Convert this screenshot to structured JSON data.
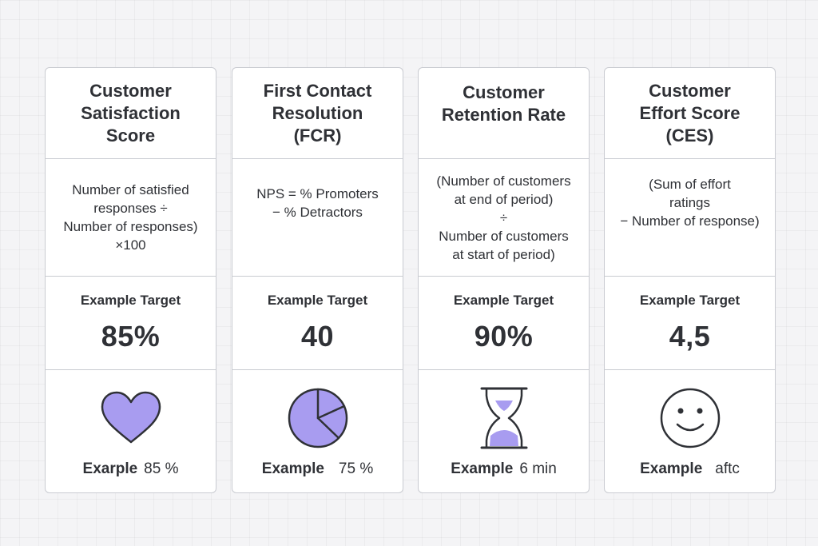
{
  "theme": {
    "accent": "#a89cf0",
    "icon_stroke": "#2f3136",
    "card_border": "#c9cbd1",
    "background": "#f4f4f6"
  },
  "cards": [
    {
      "title": "Customer\nSatisfaction\nScore",
      "formula": "Number of satisfied\nresponses ÷\nNumber of responses)\n×100",
      "target_label": "Example Target",
      "target_value": "85%",
      "icon": "heart-icon",
      "example_label": "Exarple",
      "example_value": "85 %"
    },
    {
      "title": "First Contact\nResolution\n(FCR)",
      "formula": "NPS = % Promoters\n− % Detractors",
      "target_label": "Example Target",
      "target_value": "40",
      "icon": "pie-chart-icon",
      "example_label": "Example",
      "example_value": "75 %"
    },
    {
      "title": "Customer\nRetention Rate",
      "formula": "(Number of customers\nat end of period)\n÷\nNumber of customers\nat start of period)",
      "target_label": "Example Target",
      "target_value": "90%",
      "icon": "hourglass-icon",
      "example_label": "Example",
      "example_value": "6 min"
    },
    {
      "title": "Customer\nEffort Score\n(CES)",
      "formula": "(Sum of effort\nratings\n− Number of response)",
      "target_label": "Example Target",
      "target_value": "4,5",
      "icon": "smiley-face-icon",
      "example_label": "Example",
      "example_value": "aftc"
    }
  ]
}
